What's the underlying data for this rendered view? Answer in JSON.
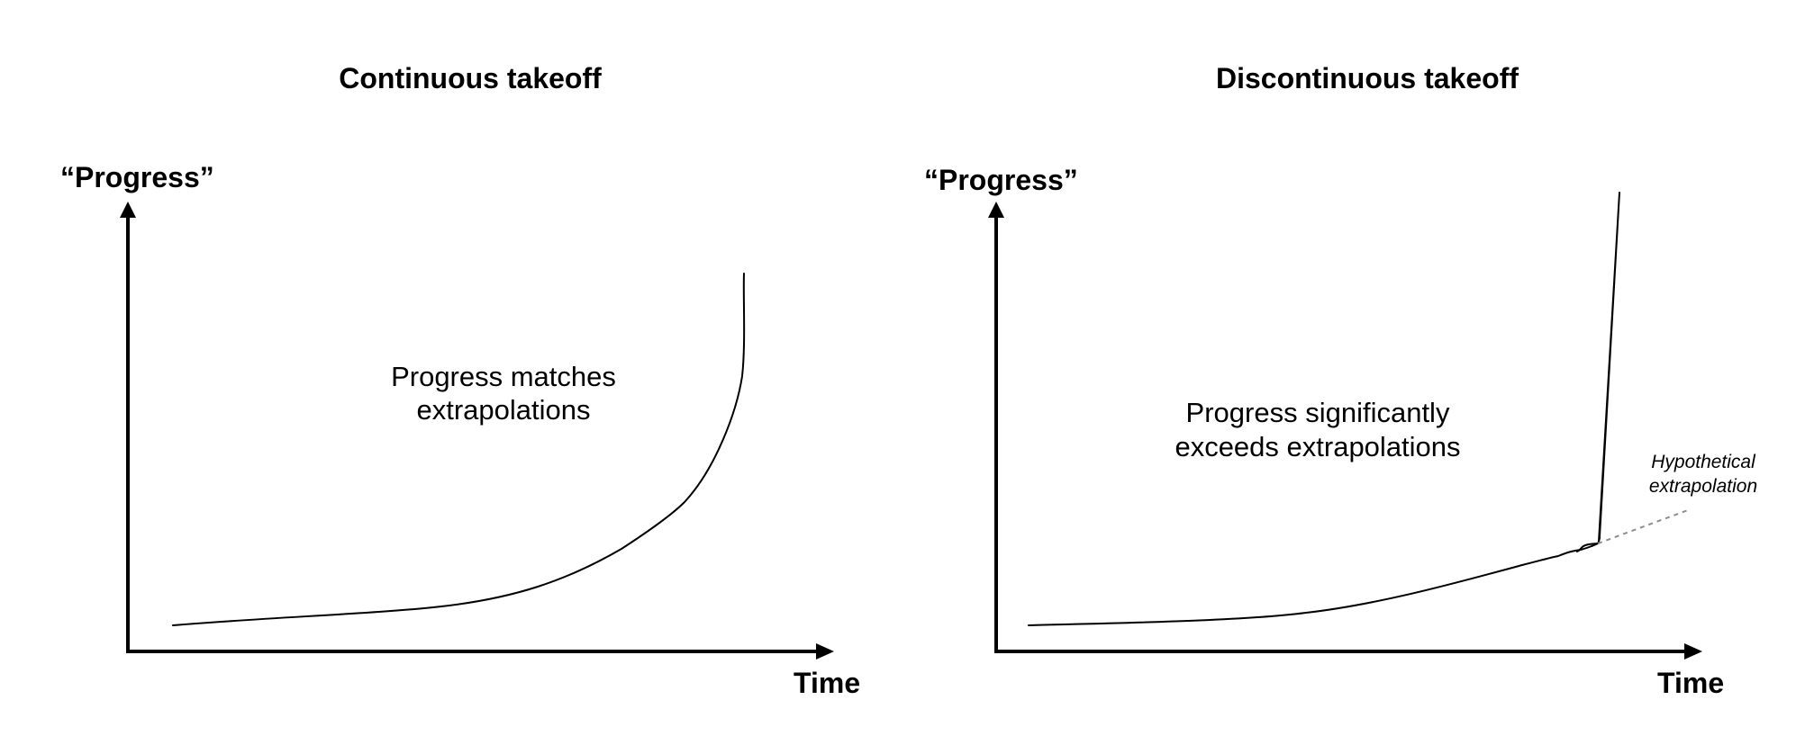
{
  "panels": [
    {
      "title": "Continuous takeoff",
      "y_axis_label": "“Progress”",
      "x_axis_label": "Time",
      "annotation_lines": [
        "Progress matches",
        "extrapolations"
      ]
    },
    {
      "title": "Discontinuous takeoff",
      "y_axis_label": "“Progress”",
      "x_axis_label": "Time",
      "annotation_lines": [
        "Progress significantly",
        "exceeds extrapolations"
      ],
      "side_note_lines": [
        "Hypothetical",
        "extrapolation"
      ]
    }
  ],
  "colors": {
    "ink": "#000000",
    "extrapolation_line": "#8c8c8c",
    "background": "#ffffff"
  }
}
